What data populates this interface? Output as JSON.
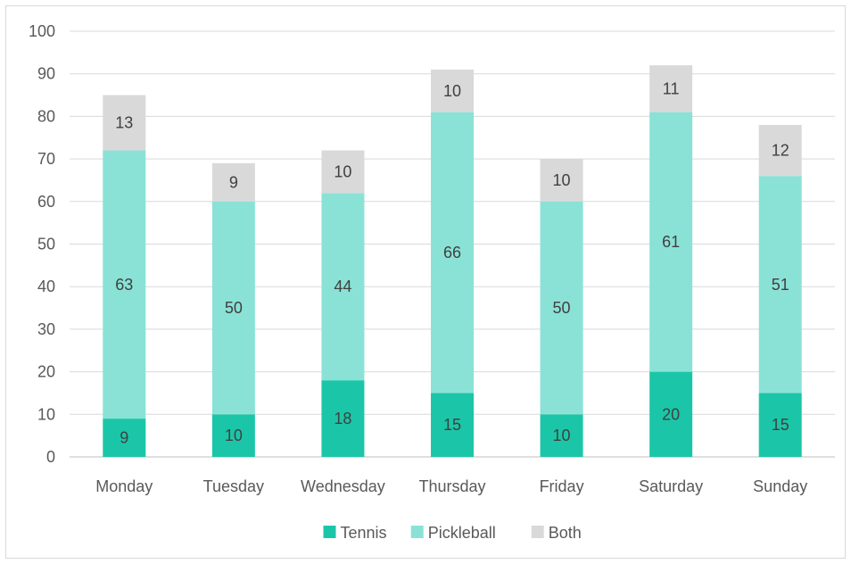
{
  "chart_data": {
    "type": "bar",
    "stacked": true,
    "categories": [
      "Monday",
      "Tuesday",
      "Wednesday",
      "Thursday",
      "Friday",
      "Saturday",
      "Sunday"
    ],
    "series": [
      {
        "name": "Tennis",
        "color": "#1bc6a8",
        "values": [
          9,
          10,
          18,
          15,
          10,
          20,
          15
        ]
      },
      {
        "name": "Pickleball",
        "color": "#8ae2d6",
        "values": [
          63,
          50,
          44,
          66,
          50,
          61,
          51
        ]
      },
      {
        "name": "Both",
        "color": "#d9d9d9",
        "values": [
          13,
          9,
          10,
          10,
          10,
          11,
          12
        ]
      }
    ],
    "ylim": [
      0,
      100
    ],
    "yticks": [
      0,
      10,
      20,
      30,
      40,
      50,
      60,
      70,
      80,
      90,
      100
    ],
    "grid": true,
    "legend": "bottom",
    "title": "",
    "xlabel": "",
    "ylabel": ""
  }
}
